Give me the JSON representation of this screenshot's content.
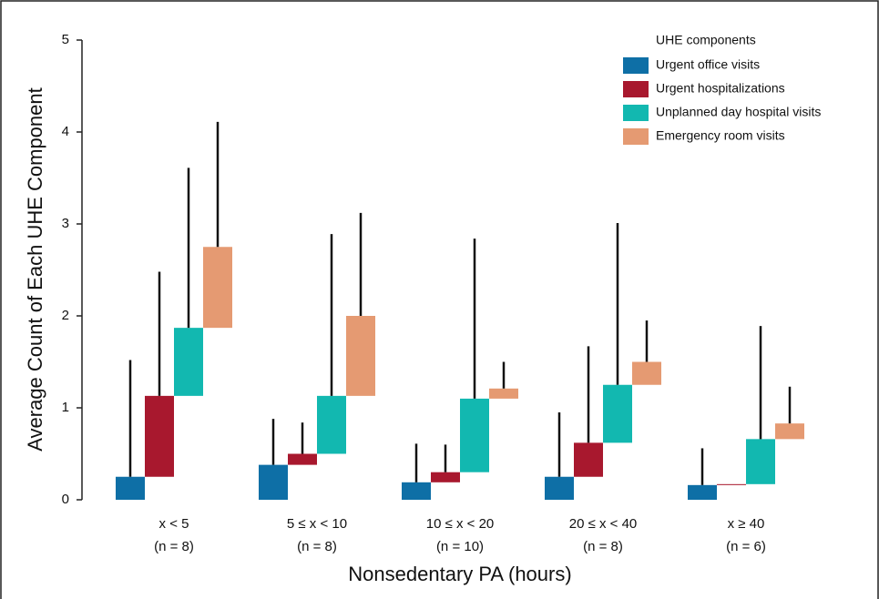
{
  "chart_data": {
    "type": "cascade",
    "x_label": "Nonsedentary PA (hours)",
    "y_label": "Average Count of Each UHE Component",
    "legend_title": "UHE components",
    "categories": [
      "x < 5",
      "5 ≤ x < 10",
      "10 ≤ x < 20",
      "20 ≤ x < 40",
      "x ≥ 40"
    ],
    "category_counts": [
      "(n = 8)",
      "(n = 8)",
      "(n = 10)",
      "(n = 8)",
      "(n = 6)"
    ],
    "ylim": [
      0,
      5
    ],
    "yticks": [
      0,
      1,
      2,
      3,
      4,
      5
    ],
    "legend_position": "upper right",
    "series": [
      {
        "name": "Urgent office visits",
        "color": "#0e6fa6",
        "values": [
          0.25,
          0.38,
          0.19,
          0.25,
          0.16
        ],
        "errors": [
          1.27,
          0.5,
          0.42,
          0.7,
          0.4
        ]
      },
      {
        "name": "Urgent hospitalizations",
        "color": "#a8182e",
        "values": [
          0.88,
          0.12,
          0.11,
          0.37,
          0.01
        ],
        "errors": [
          1.35,
          0.34,
          0.3,
          1.05,
          0
        ]
      },
      {
        "name": "Unplanned day hospital visits",
        "color": "#12b8b0",
        "values": [
          0.74,
          0.63,
          0.8,
          0.63,
          0.49
        ],
        "errors": [
          1.74,
          1.76,
          1.74,
          1.76,
          1.23
        ]
      },
      {
        "name": "Emergency room visits",
        "color": "#e59a72",
        "values": [
          0.88,
          0.87,
          0.11,
          0.25,
          0.17
        ],
        "errors": [
          1.36,
          1.12,
          0.29,
          0.45,
          0.4
        ]
      }
    ]
  }
}
